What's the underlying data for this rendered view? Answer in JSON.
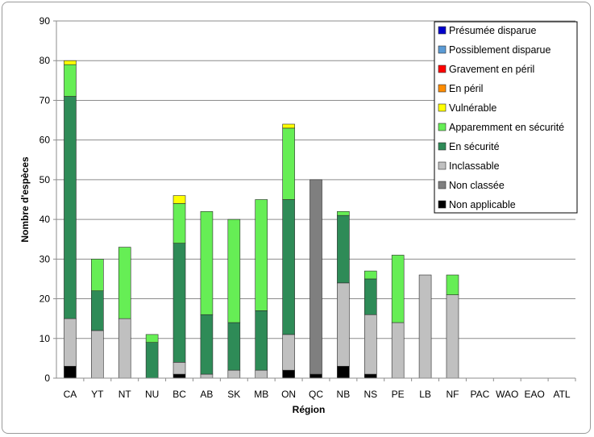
{
  "chart_data": {
    "type": "bar",
    "stacked": true,
    "title": "",
    "xlabel": "Région",
    "ylabel": "Nombre d'espèces",
    "ylim": [
      0,
      90
    ],
    "ytick_step": 10,
    "grid": true,
    "legend_position": "top-right",
    "categories": [
      "CA",
      "YT",
      "NT",
      "NU",
      "BC",
      "AB",
      "SK",
      "MB",
      "ON",
      "QC",
      "NB",
      "NS",
      "PE",
      "LB",
      "NF",
      "PAC",
      "WAO",
      "EAO",
      "ATL"
    ],
    "series": [
      {
        "name": "Non applicable",
        "color": "#000000",
        "values": [
          3,
          0,
          0,
          0,
          1,
          0,
          0,
          0,
          2,
          1,
          3,
          1,
          0,
          0,
          0,
          0,
          0,
          0,
          0
        ]
      },
      {
        "name": "Non classée",
        "color": "#7f7f7f",
        "values": [
          0,
          0,
          0,
          0,
          0,
          0,
          0,
          0,
          0,
          49,
          0,
          0,
          0,
          0,
          0,
          0,
          0,
          0,
          0
        ]
      },
      {
        "name": "Inclassable",
        "color": "#c0c0c0",
        "values": [
          12,
          12,
          15,
          0,
          3,
          1,
          2,
          2,
          9,
          0,
          21,
          15,
          14,
          26,
          21,
          0,
          0,
          0,
          0
        ]
      },
      {
        "name": "En sécurité",
        "color": "#2e8b57",
        "values": [
          56,
          10,
          0,
          9,
          30,
          15,
          12,
          15,
          34,
          0,
          17,
          9,
          0,
          0,
          0,
          0,
          0,
          0,
          0
        ]
      },
      {
        "name": "Apparemment en sécurité",
        "color": "#66ee55",
        "values": [
          8,
          8,
          18,
          2,
          10,
          26,
          26,
          28,
          18,
          0,
          1,
          2,
          17,
          0,
          5,
          0,
          0,
          0,
          0
        ]
      },
      {
        "name": "Vulnérable",
        "color": "#ffff00",
        "values": [
          1,
          0,
          0,
          0,
          2,
          0,
          0,
          0,
          1,
          0,
          0,
          0,
          0,
          0,
          0,
          0,
          0,
          0,
          0
        ]
      },
      {
        "name": "En péril",
        "color": "#ff8c00",
        "values": [
          0,
          0,
          0,
          0,
          0,
          0,
          0,
          0,
          0,
          0,
          0,
          0,
          0,
          0,
          0,
          0,
          0,
          0,
          0
        ]
      },
      {
        "name": "Gravement en péril",
        "color": "#ff0000",
        "values": [
          0,
          0,
          0,
          0,
          0,
          0,
          0,
          0,
          0,
          0,
          0,
          0,
          0,
          0,
          0,
          0,
          0,
          0,
          0
        ]
      },
      {
        "name": "Possiblement disparue",
        "color": "#5b9bd5",
        "values": [
          0,
          0,
          0,
          0,
          0,
          0,
          0,
          0,
          0,
          0,
          0,
          0,
          0,
          0,
          0,
          0,
          0,
          0,
          0
        ]
      },
      {
        "name": "Présumée disparue",
        "color": "#0000cc",
        "values": [
          0,
          0,
          0,
          0,
          0,
          0,
          0,
          0,
          0,
          0,
          0,
          0,
          0,
          0,
          0,
          0,
          0,
          0,
          0
        ]
      }
    ],
    "legend_order": [
      "Présumée disparue",
      "Possiblement disparue",
      "Gravement en péril",
      "En péril",
      "Vulnérable",
      "Apparemment en sécurité",
      "En sécurité",
      "Inclassable",
      "Non classée",
      "Non applicable"
    ]
  }
}
